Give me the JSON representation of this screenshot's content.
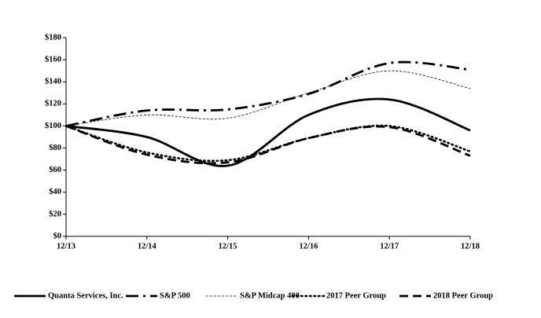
{
  "chart_data": {
    "type": "line",
    "categories": [
      "12/13",
      "12/14",
      "12/15",
      "12/16",
      "12/17",
      "12/18"
    ],
    "ylim": [
      0,
      180
    ],
    "yticks": [
      {
        "value": 0,
        "label": "$0"
      },
      {
        "value": 20,
        "label": "$20"
      },
      {
        "value": 40,
        "label": "$40"
      },
      {
        "value": 60,
        "label": "$60"
      },
      {
        "value": 80,
        "label": "$80"
      },
      {
        "value": 100,
        "label": "$100"
      },
      {
        "value": 120,
        "label": "$120"
      },
      {
        "value": 140,
        "label": "$140"
      },
      {
        "value": 160,
        "label": "$160"
      },
      {
        "value": 180,
        "label": "$180"
      }
    ],
    "grid": false,
    "legend": "bottom",
    "series": [
      {
        "name": "Quanta Services, Inc.",
        "color": "#000000",
        "dash": "solid",
        "values": [
          100,
          90,
          64,
          110,
          124,
          96
        ]
      },
      {
        "name": "S&P 500",
        "color": "#000000",
        "dash": "dash-dot",
        "values": [
          100,
          114,
          115,
          129,
          157,
          151
        ]
      },
      {
        "name": "S&P Midcap 400",
        "color": "#000000",
        "dash": "thin-dash",
        "values": [
          100,
          110,
          107,
          130,
          150,
          134
        ]
      },
      {
        "name": "2017 Peer Group",
        "color": "#000000",
        "dash": "dot",
        "values": [
          100,
          76,
          69,
          89,
          100,
          77
        ]
      },
      {
        "name": "2018 Peer Group",
        "color": "#000000",
        "dash": "dash",
        "values": [
          100,
          74,
          67,
          89,
          99,
          73
        ]
      }
    ]
  }
}
